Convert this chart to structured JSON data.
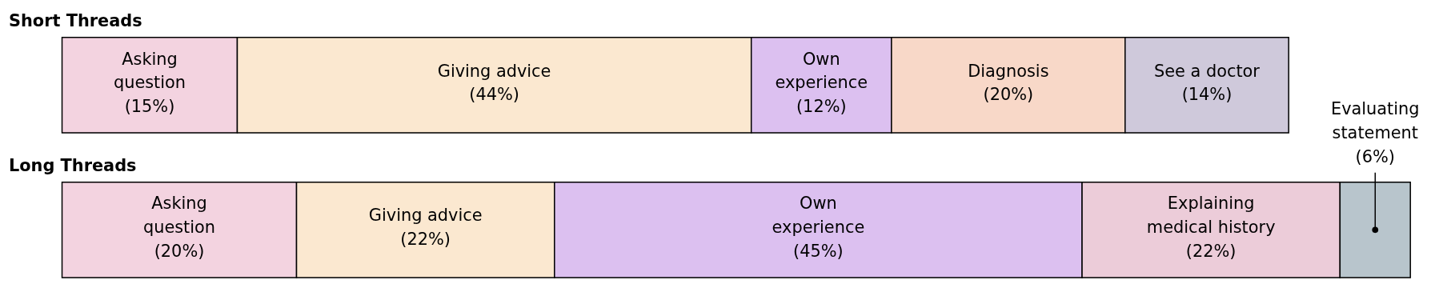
{
  "chart_data": [
    {
      "type": "bar",
      "stacked": true,
      "orientation": "horizontal",
      "title": "Short Threads",
      "categories": [
        null
      ],
      "xlim": [
        0,
        105
      ],
      "tick_labels": false,
      "legend": false,
      "series": [
        {
          "name": "Asking question",
          "color": "#f3d3e0",
          "values": [
            15
          ],
          "value_labels": [
            "(15%)"
          ]
        },
        {
          "name": "Giving advice",
          "color": "#fbe8d0",
          "values": [
            44
          ],
          "value_labels": [
            "(44%)"
          ]
        },
        {
          "name": "Own experience",
          "color": "#dcc0f0",
          "values": [
            12
          ],
          "value_labels": [
            "(12%)"
          ]
        },
        {
          "name": "Diagnosis",
          "color": "#f8d8c8",
          "values": [
            20
          ],
          "value_labels": [
            "(20%)"
          ]
        },
        {
          "name": "See a doctor",
          "color": "#cfc9db",
          "values": [
            14
          ],
          "value_labels": [
            "(14%)"
          ]
        }
      ]
    },
    {
      "type": "bar",
      "stacked": true,
      "orientation": "horizontal",
      "title": "Long Threads",
      "categories": [
        null
      ],
      "xlim": [
        0,
        115
      ],
      "tick_labels": false,
      "legend": false,
      "series": [
        {
          "name": "Asking question",
          "color": "#f3d3e0",
          "values": [
            20
          ],
          "value_labels": [
            "(20%)"
          ]
        },
        {
          "name": "Giving advice",
          "color": "#fbe8d0",
          "values": [
            22
          ],
          "value_labels": [
            "(22%)"
          ]
        },
        {
          "name": "Own experience",
          "color": "#dcc0f0",
          "values": [
            45
          ],
          "value_labels": [
            "(45%)"
          ]
        },
        {
          "name": "Explaining medical history",
          "color": "#ecccd9",
          "values": [
            22
          ],
          "value_labels": [
            "(22%)"
          ]
        },
        {
          "name": "Evaluating statement",
          "color": "#b8c5cc",
          "values": [
            6
          ],
          "value_labels": [
            "(6%)"
          ]
        }
      ]
    }
  ]
}
